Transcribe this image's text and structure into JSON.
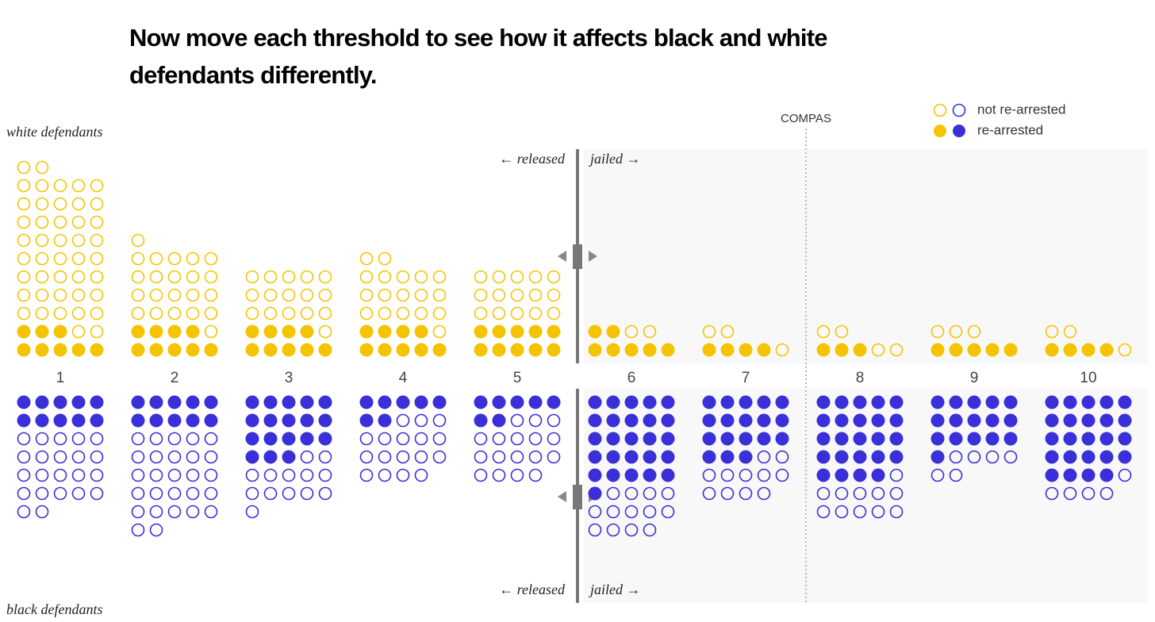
{
  "chart_data": {
    "type": "unit",
    "title": "Now move each threshold to see how it affects black and white defendants differently.",
    "categories": [
      "1",
      "2",
      "3",
      "4",
      "5",
      "6",
      "7",
      "8",
      "9",
      "10"
    ],
    "legend": {
      "not_rearrested": "not re-arrested",
      "rearrested": "re-arrested"
    },
    "released_label": "← released",
    "jailed_label": "jailed →",
    "reference_label": "COMPAS",
    "groups": [
      {
        "name": "white defendants",
        "color": "#f5c400",
        "rearrested": [
          8,
          9,
          9,
          9,
          10,
          7,
          4,
          3,
          5,
          4
        ],
        "not_rearrested": [
          44,
          22,
          16,
          18,
          15,
          2,
          3,
          4,
          3,
          3
        ]
      },
      {
        "name": "black defendants",
        "color": "#3a2fd8",
        "rearrested": [
          10,
          10,
          18,
          7,
          7,
          26,
          18,
          24,
          16,
          24
        ],
        "not_rearrested": [
          22,
          27,
          13,
          17,
          17,
          13,
          11,
          11,
          6,
          5
        ]
      }
    ]
  }
}
